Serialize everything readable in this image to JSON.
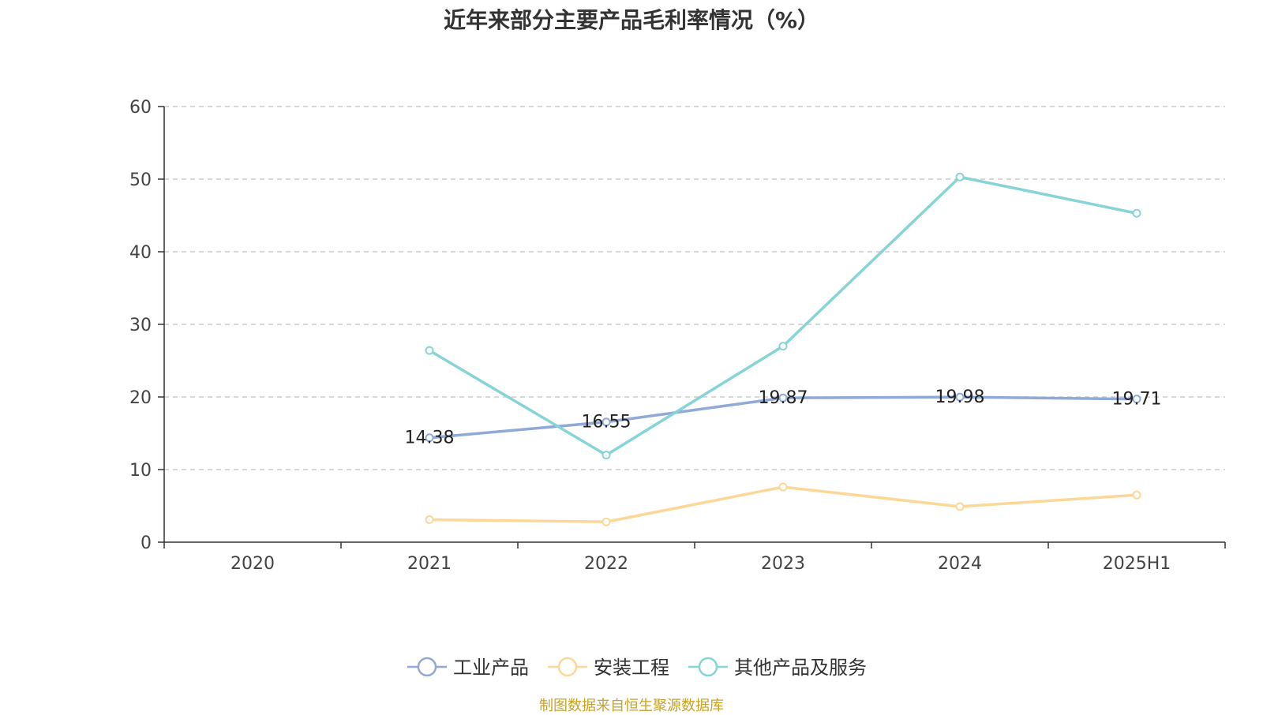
{
  "title": "近年来部分主要产品毛利率情况（%）",
  "source": "制图数据来自恒生聚源数据库",
  "chart_data": {
    "type": "line",
    "categories": [
      "2020",
      "2021",
      "2022",
      "2023",
      "2024",
      "2025H1"
    ],
    "ylim": [
      0,
      60
    ],
    "yticks": [
      0,
      10,
      20,
      30,
      40,
      50,
      60
    ],
    "grid": "horizontal dashed",
    "legend_position": "bottom",
    "series": [
      {
        "name": "工业产品",
        "color": "#8fa9d8",
        "values": [
          null,
          14.38,
          16.55,
          19.87,
          19.98,
          19.71
        ],
        "labels": [
          "",
          "14.38",
          "16.55",
          "19.87",
          "19.98",
          "19.71"
        ]
      },
      {
        "name": "安装工程",
        "color": "#fcd797",
        "values": [
          null,
          3.1,
          2.8,
          7.6,
          4.9,
          6.5
        ],
        "labels": []
      },
      {
        "name": "其他产品及服务",
        "color": "#86d4d6",
        "values": [
          null,
          26.4,
          12.0,
          27.0,
          50.3,
          45.3
        ],
        "labels": []
      }
    ]
  }
}
